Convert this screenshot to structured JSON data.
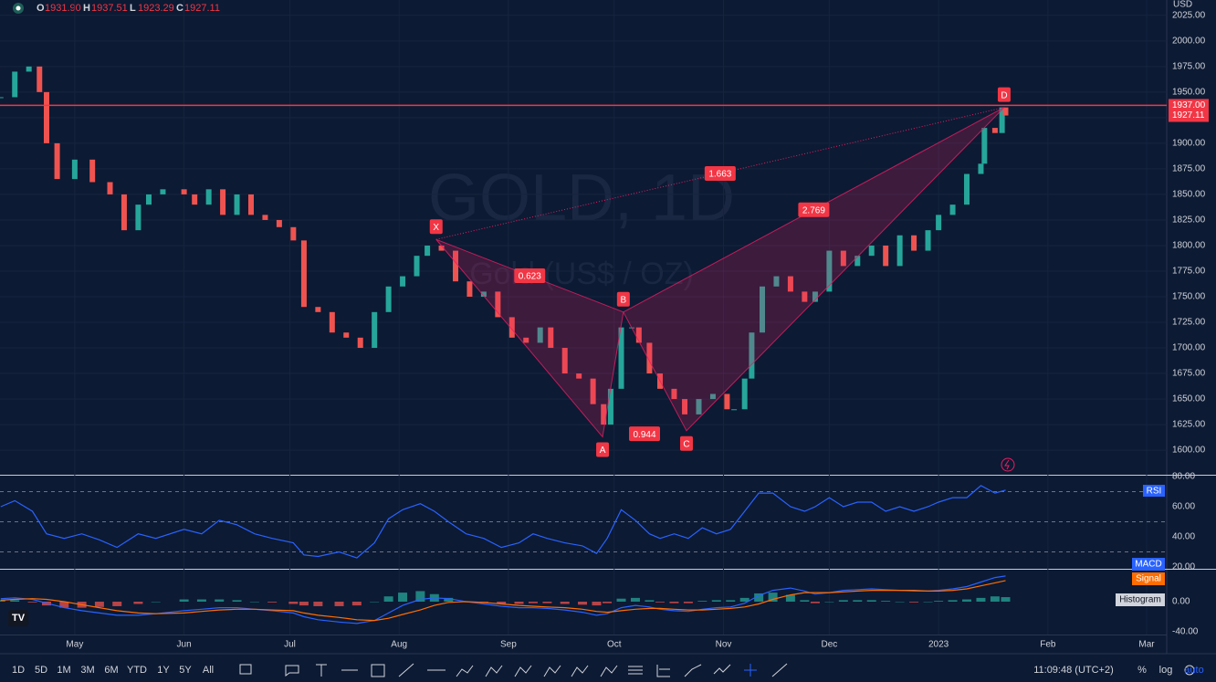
{
  "header": {
    "ohlc": [
      {
        "label": "O",
        "value": "1931.90"
      },
      {
        "label": "H",
        "value": "1937.51"
      },
      {
        "label": "L",
        "value": "1923.29"
      },
      {
        "label": "C",
        "value": "1927.11"
      }
    ]
  },
  "watermark": {
    "title": "GOLD, 1D",
    "subtitle": "Gold (US$ / OZ)"
  },
  "currency": "USD",
  "chart_data": [
    {
      "type": "candlestick",
      "up_color": "#26a69a",
      "down_color": "#ef5350",
      "x": [
        -21,
        -17,
        -13,
        -10,
        -8,
        -5,
        0,
        5,
        10,
        14,
        18,
        21,
        25,
        31,
        34,
        38,
        42,
        46,
        50,
        54,
        58,
        62,
        65,
        69,
        73,
        77,
        81,
        85,
        89,
        93,
        97,
        100,
        104,
        108,
        112,
        116,
        120,
        124,
        128,
        132,
        135,
        139,
        143,
        147,
        150,
        152,
        155,
        158,
        160,
        163,
        166,
        170,
        173,
        177,
        181,
        185,
        187,
        190,
        192,
        195,
        199,
        203,
        207,
        210,
        214,
        218,
        222,
        226,
        230,
        234,
        238,
        242,
        245,
        249,
        253,
        257,
        258,
        261,
        263,
        264
      ],
      "close": [
        1945,
        1970,
        1975,
        1950,
        1900,
        1865,
        1884,
        1862,
        1850,
        1815,
        1840,
        1850,
        1855,
        1850,
        1840,
        1855,
        1830,
        1850,
        1830,
        1825,
        1818,
        1805,
        1740,
        1735,
        1715,
        1710,
        1700,
        1735,
        1760,
        1770,
        1790,
        1800,
        1795,
        1765,
        1750,
        1755,
        1730,
        1710,
        1705,
        1720,
        1700,
        1675,
        1670,
        1645,
        1625,
        1660,
        1720,
        1720,
        1705,
        1675,
        1660,
        1650,
        1635,
        1650,
        1655,
        1640,
        1640,
        1670,
        1715,
        1760,
        1770,
        1755,
        1745,
        1755,
        1795,
        1780,
        1790,
        1800,
        1780,
        1810,
        1795,
        1815,
        1830,
        1840,
        1870,
        1880,
        1915,
        1910,
        1935,
        1927.11
      ],
      "xlim": [
        -21.2,
        309.7
      ],
      "xticks": [
        {
          "value": 0,
          "label": "May"
        },
        {
          "value": 31,
          "label": "Jun"
        },
        {
          "value": 61,
          "label": "Jul"
        },
        {
          "value": 92,
          "label": "Aug"
        },
        {
          "value": 123,
          "label": "Sep"
        },
        {
          "value": 153,
          "label": "Oct"
        },
        {
          "value": 184,
          "label": "Nov"
        },
        {
          "value": 214,
          "label": "Dec"
        },
        {
          "value": 245,
          "label": "2023"
        },
        {
          "value": 276,
          "label": "Feb"
        },
        {
          "value": 304,
          "label": "Mar"
        }
      ],
      "ylim": [
        1576,
        2040
      ],
      "yticks": [
        {
          "value": 1600,
          "label": "1600.00"
        },
        {
          "value": 1625,
          "label": "1625.00"
        },
        {
          "value": 1650,
          "label": "1650.00"
        },
        {
          "value": 1675,
          "label": "1675.00"
        },
        {
          "value": 1700,
          "label": "1700.00"
        },
        {
          "value": 1725,
          "label": "1725.00"
        },
        {
          "value": 1750,
          "label": "1750.00"
        },
        {
          "value": 1775,
          "label": "1775.00"
        },
        {
          "value": 1800,
          "label": "1800.00"
        },
        {
          "value": 1825,
          "label": "1825.00"
        },
        {
          "value": 1850,
          "label": "1850.00"
        },
        {
          "value": 1875,
          "label": "1875.00"
        },
        {
          "value": 1900,
          "label": "1900.00"
        },
        {
          "value": 1925,
          "label": "1925.00"
        },
        {
          "value": 1950,
          "label": "1950.00"
        },
        {
          "value": 1975,
          "label": "1975.00"
        },
        {
          "value": 2000,
          "label": "2000.00"
        },
        {
          "value": 2025,
          "label": "2025.00"
        }
      ],
      "hline": {
        "value": 1937,
        "label": "1937.00",
        "color": "#f23645"
      },
      "pattern_color": "#e91e63",
      "pattern": {
        "points": [
          {
            "label": "X",
            "x": 102.5,
            "y": 1806
          },
          {
            "label": "A",
            "x": 149.7,
            "y": 1613
          },
          {
            "label": "B",
            "x": 155.6,
            "y": 1735
          },
          {
            "label": "C",
            "x": 173.5,
            "y": 1619
          },
          {
            "label": "D",
            "x": 263.6,
            "y": 1935
          }
        ],
        "ratios": {
          "XB": 0.623,
          "XD": 1.663,
          "BD": 2.769,
          "AC": 0.944
        }
      }
    },
    {
      "type": "line",
      "label": "RSI",
      "color": "#2962ff",
      "x": [
        -21,
        -17,
        -12,
        -8,
        -3,
        2,
        7,
        12,
        18,
        23,
        31,
        36,
        41,
        46,
        51,
        56,
        62,
        65,
        69,
        75,
        80,
        85,
        89,
        93,
        98,
        102,
        106,
        111,
        116,
        121,
        126,
        130,
        134,
        139,
        144,
        148,
        151,
        155,
        159,
        163,
        166,
        170,
        174,
        178,
        182,
        186,
        190,
        194,
        198,
        203,
        207,
        210,
        214,
        218,
        222,
        226,
        230,
        234,
        238,
        242,
        245,
        249,
        253,
        257,
        261,
        264
      ],
      "values": [
        60,
        64,
        57,
        42,
        39,
        42,
        38,
        33,
        42,
        39,
        45,
        42,
        51,
        48,
        42,
        39,
        36,
        28,
        27,
        30,
        26,
        36,
        52,
        58,
        62,
        57,
        50,
        42,
        39,
        33,
        36,
        42,
        39,
        36,
        34,
        29,
        39,
        58,
        51,
        42,
        39,
        42,
        39,
        46,
        42,
        45,
        57,
        69,
        69,
        60,
        57,
        60,
        66,
        60,
        63,
        63,
        57,
        60,
        57,
        60,
        63,
        66,
        66,
        74,
        69,
        71
      ],
      "ylim": [
        18.8,
        80.6
      ],
      "yticks": [
        {
          "value": 20,
          "label": "20.00"
        },
        {
          "value": 40,
          "label": "40.00"
        },
        {
          "value": 60,
          "label": "60.00"
        },
        {
          "value": 80,
          "label": "80.00"
        }
      ],
      "bands": [
        30,
        50,
        70
      ]
    },
    {
      "type": "macd",
      "x": [
        -21,
        -17,
        -12,
        -8,
        -3,
        2,
        7,
        12,
        18,
        23,
        31,
        36,
        41,
        46,
        51,
        56,
        62,
        65,
        69,
        75,
        80,
        85,
        89,
        93,
        98,
        102,
        106,
        111,
        116,
        121,
        126,
        130,
        134,
        139,
        144,
        148,
        151,
        155,
        159,
        163,
        166,
        170,
        174,
        178,
        182,
        186,
        190,
        194,
        198,
        203,
        207,
        210,
        214,
        218,
        222,
        226,
        230,
        234,
        238,
        242,
        245,
        249,
        253,
        257,
        261,
        264
      ],
      "series": [
        {
          "name": "MACD",
          "color": "#2962ff",
          "values": [
            4,
            5,
            3,
            -2,
            -8,
            -12,
            -15,
            -18,
            -18,
            -16,
            -12,
            -10,
            -8,
            -8,
            -10,
            -12,
            -15,
            -20,
            -24,
            -27,
            -29,
            -25,
            -15,
            -5,
            3,
            5,
            4,
            0,
            -3,
            -6,
            -8,
            -8,
            -9,
            -11,
            -14,
            -18,
            -16,
            -8,
            -5,
            -7,
            -10,
            -12,
            -13,
            -10,
            -8,
            -7,
            -2,
            8,
            15,
            18,
            14,
            10,
            12,
            15,
            16,
            17,
            16,
            15,
            14,
            14,
            15,
            17,
            20,
            26,
            32,
            34
          ]
        },
        {
          "name": "Signal",
          "color": "#ff6d00",
          "values": [
            2,
            3,
            4,
            3,
            0,
            -4,
            -8,
            -12,
            -15,
            -16,
            -15,
            -13,
            -11,
            -10,
            -10,
            -11,
            -12,
            -15,
            -18,
            -21,
            -24,
            -25,
            -22,
            -17,
            -11,
            -5,
            -1,
            0,
            -1,
            -3,
            -5,
            -6,
            -7,
            -8,
            -10,
            -13,
            -14,
            -12,
            -10,
            -9,
            -9,
            -10,
            -11,
            -11,
            -10,
            -9,
            -7,
            -3,
            3,
            9,
            12,
            12,
            12,
            13,
            14,
            15,
            15,
            15,
            15,
            14,
            14,
            15,
            17,
            21,
            25,
            28
          ]
        }
      ],
      "histogram": {
        "name": "Histogram",
        "up_color": "#26a69a",
        "down_color": "#ef5350",
        "values": [
          2,
          2,
          -1,
          -5,
          -8,
          -8,
          -7,
          -6,
          -3,
          0,
          3,
          3,
          3,
          2,
          0,
          -1,
          -3,
          -5,
          -6,
          -6,
          -5,
          0,
          7,
          12,
          14,
          10,
          5,
          0,
          -2,
          -3,
          -3,
          -2,
          -2,
          -3,
          -4,
          -5,
          -2,
          4,
          5,
          2,
          -1,
          -2,
          -2,
          1,
          2,
          2,
          5,
          11,
          12,
          9,
          2,
          -2,
          0,
          2,
          2,
          2,
          1,
          0,
          -1,
          0,
          1,
          2,
          3,
          5,
          7,
          6
        ]
      },
      "ylim": [
        -43.6,
        42.4
      ],
      "yticks": [
        {
          "value": -40,
          "label": "-40.00"
        },
        {
          "value": 0,
          "label": "0.00"
        }
      ]
    }
  ],
  "toolbar": {
    "ranges": [
      "1D",
      "5D",
      "1M",
      "3M",
      "6M",
      "YTD",
      "1Y",
      "5Y",
      "All"
    ],
    "time": "11:09:48 (UTC+2)",
    "options": [
      "%",
      "log",
      "auto"
    ]
  }
}
